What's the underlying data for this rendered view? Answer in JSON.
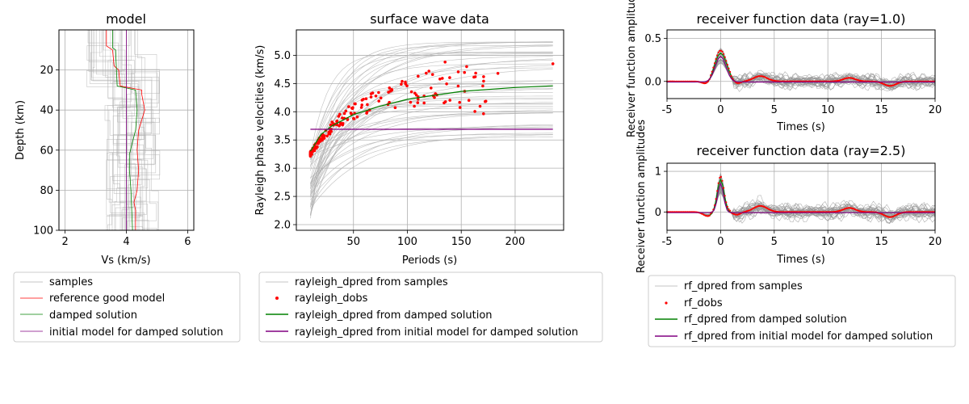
{
  "chart_data": [
    {
      "type": "line",
      "title": "model",
      "xlabel": "Vs (km/s)",
      "ylabel": "Depth (km)",
      "xlim": [
        1.8,
        6.2
      ],
      "ylim": [
        100,
        0
      ],
      "xticks": [
        "2",
        "4",
        "6"
      ],
      "yticks": [
        "20",
        "40",
        "60",
        "80",
        "100"
      ],
      "grid": true,
      "legend": "below",
      "series": [
        {
          "name": "samples",
          "color": "#b0b0b0",
          "note_points": "many thin step profiles spread 3.0-5.3 km/s"
        },
        {
          "name": "reference good model",
          "color": "#ff0000",
          "depth": [
            0,
            8,
            10,
            18,
            20,
            28,
            30,
            32,
            40,
            50,
            60,
            70,
            80,
            86,
            90,
            100
          ],
          "vs": [
            3.35,
            3.35,
            3.55,
            3.6,
            3.75,
            3.8,
            4.5,
            4.5,
            4.6,
            4.4,
            4.35,
            4.4,
            4.35,
            4.25,
            4.3,
            4.3
          ]
        },
        {
          "name": "damped solution",
          "color": "#008000",
          "depth": [
            0,
            9,
            10,
            28,
            30,
            40,
            50,
            62,
            70,
            80,
            100
          ],
          "vs": [
            3.55,
            3.55,
            3.65,
            3.7,
            4.3,
            4.35,
            4.3,
            4.1,
            4.1,
            4.15,
            4.2
          ]
        },
        {
          "name": "initial model for damped solution",
          "color": "#800080",
          "depth": [
            0,
            100
          ],
          "vs": [
            4.0,
            4.0
          ]
        }
      ]
    },
    {
      "type": "line",
      "title": "surface wave data",
      "xlabel": "Periods (s)",
      "ylabel": "Rayleigh phase velocities (km/s)",
      "xlim": [
        -3,
        245
      ],
      "ylim": [
        1.9,
        5.45
      ],
      "xticks": [
        "50",
        "100",
        "150",
        "200"
      ],
      "yticks": [
        "2.0",
        "2.5",
        "3.0",
        "3.5",
        "4.0",
        "4.5",
        "5.0"
      ],
      "grid": true,
      "legend": "below",
      "series": [
        {
          "name": "rayleigh_dpred from samples",
          "color": "#b0b0b0"
        },
        {
          "name": "rayleigh_dobs",
          "color": "#ff0000"
        },
        {
          "name": "rayleigh_dpred from damped solution",
          "color": "#008000",
          "x": [
            10,
            20,
            30,
            50,
            75,
            100,
            150,
            200,
            235
          ],
          "y": [
            3.3,
            3.6,
            3.75,
            3.95,
            4.1,
            4.22,
            4.36,
            4.43,
            4.46
          ]
        },
        {
          "name": "rayleigh_dpred from initial model for damped solution",
          "color": "#800080",
          "x": [
            10,
            235
          ],
          "y": [
            3.69,
            3.69
          ]
        }
      ]
    },
    {
      "type": "line",
      "title": "receiver function data (ray=1.0)",
      "xlabel": "Times (s)",
      "ylabel": "Receiver function amplitudes",
      "xlim": [
        -5,
        20
      ],
      "ylim": [
        -0.2,
        0.6
      ],
      "xticks": [
        "-5",
        "0",
        "5",
        "10",
        "15",
        "20"
      ],
      "yticks": [
        "0.0",
        "0.5"
      ],
      "grid": true,
      "legend": "below"
    },
    {
      "type": "line",
      "title": "receiver function data (ray=2.5)",
      "xlabel": "Times (s)",
      "ylabel": "Receiver function amplitudes",
      "xlim": [
        -5,
        20
      ],
      "ylim": [
        -0.45,
        1.2
      ],
      "xticks": [
        "-5",
        "0",
        "5",
        "10",
        "15",
        "20"
      ],
      "yticks": [
        "0",
        "1"
      ],
      "grid": true,
      "legend": "below",
      "series": [
        {
          "name": "rf_dpred from samples",
          "color": "#b0b0b0"
        },
        {
          "name": "rf_dobs",
          "color": "#ff0000"
        },
        {
          "name": "rf_dpred from damped solution",
          "color": "#008000"
        },
        {
          "name": "rf_dpred from initial model for damped solution",
          "color": "#800080"
        }
      ]
    }
  ]
}
